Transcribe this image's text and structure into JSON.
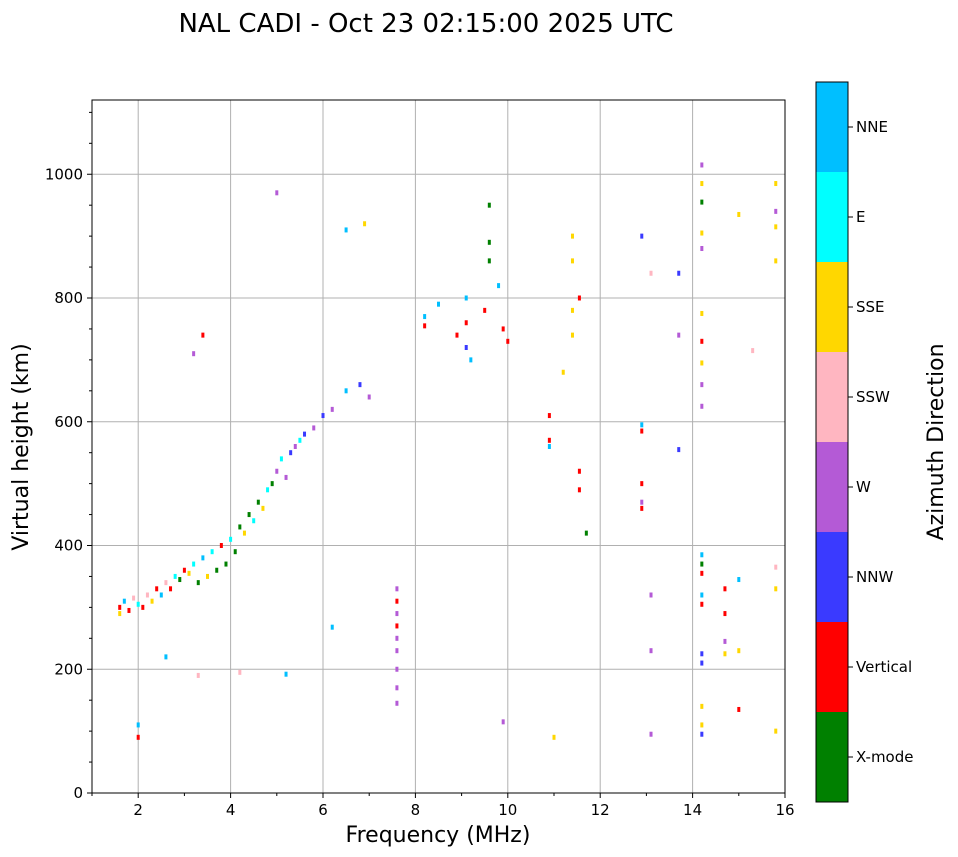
{
  "chart_data": {
    "type": "scatter",
    "title": "NAL CADI - Oct 23 02:15:00 2025 UTC",
    "xlabel": "Frequency (MHz)",
    "ylabel": "Virtual height (km)",
    "xlim": [
      1,
      16
    ],
    "ylim": [
      0,
      1120
    ],
    "x_ticks": [
      2,
      4,
      6,
      8,
      10,
      12,
      14,
      16
    ],
    "y_ticks": [
      0,
      200,
      400,
      600,
      800,
      1000
    ],
    "grid": true,
    "colorbar": {
      "label": "Azimuth Direction",
      "categories": [
        {
          "name": "X-mode",
          "color": "#008000"
        },
        {
          "name": "Vertical",
          "color": "#ff0000"
        },
        {
          "name": "NNW",
          "color": "#3a3aff"
        },
        {
          "name": "W",
          "color": "#b45ad6"
        },
        {
          "name": "SSW",
          "color": "#ffb6c1"
        },
        {
          "name": "SSE",
          "color": "#ffd700"
        },
        {
          "name": "E",
          "color": "#00ffff"
        },
        {
          "name": "NNE",
          "color": "#00bfff"
        }
      ]
    },
    "points": [
      {
        "f": 1.6,
        "h": 300,
        "dir": "Vertical"
      },
      {
        "f": 1.6,
        "h": 290,
        "dir": "SSE"
      },
      {
        "f": 1.7,
        "h": 310,
        "dir": "NNE"
      },
      {
        "f": 1.8,
        "h": 295,
        "dir": "Vertical"
      },
      {
        "f": 1.9,
        "h": 315,
        "dir": "SSW"
      },
      {
        "f": 2.0,
        "h": 305,
        "dir": "E"
      },
      {
        "f": 2.1,
        "h": 300,
        "dir": "Vertical"
      },
      {
        "f": 2.2,
        "h": 320,
        "dir": "SSW"
      },
      {
        "f": 2.3,
        "h": 310,
        "dir": "SSE"
      },
      {
        "f": 2.4,
        "h": 330,
        "dir": "Vertical"
      },
      {
        "f": 2.5,
        "h": 320,
        "dir": "NNE"
      },
      {
        "f": 2.6,
        "h": 340,
        "dir": "SSW"
      },
      {
        "f": 2.7,
        "h": 330,
        "dir": "Vertical"
      },
      {
        "f": 2.8,
        "h": 350,
        "dir": "E"
      },
      {
        "f": 2.9,
        "h": 345,
        "dir": "X-mode"
      },
      {
        "f": 3.0,
        "h": 360,
        "dir": "Vertical"
      },
      {
        "f": 3.1,
        "h": 355,
        "dir": "SSE"
      },
      {
        "f": 3.2,
        "h": 370,
        "dir": "E"
      },
      {
        "f": 3.3,
        "h": 340,
        "dir": "X-mode"
      },
      {
        "f": 3.4,
        "h": 380,
        "dir": "NNE"
      },
      {
        "f": 3.5,
        "h": 350,
        "dir": "SSE"
      },
      {
        "f": 3.6,
        "h": 390,
        "dir": "E"
      },
      {
        "f": 3.7,
        "h": 360,
        "dir": "X-mode"
      },
      {
        "f": 3.8,
        "h": 400,
        "dir": "Vertical"
      },
      {
        "f": 3.9,
        "h": 370,
        "dir": "X-mode"
      },
      {
        "f": 4.0,
        "h": 410,
        "dir": "E"
      },
      {
        "f": 4.1,
        "h": 390,
        "dir": "X-mode"
      },
      {
        "f": 4.2,
        "h": 430,
        "dir": "X-mode"
      },
      {
        "f": 4.3,
        "h": 420,
        "dir": "SSE"
      },
      {
        "f": 4.4,
        "h": 450,
        "dir": "X-mode"
      },
      {
        "f": 4.5,
        "h": 440,
        "dir": "E"
      },
      {
        "f": 4.6,
        "h": 470,
        "dir": "X-mode"
      },
      {
        "f": 4.7,
        "h": 460,
        "dir": "SSE"
      },
      {
        "f": 4.8,
        "h": 490,
        "dir": "E"
      },
      {
        "f": 4.9,
        "h": 500,
        "dir": "X-mode"
      },
      {
        "f": 5.0,
        "h": 520,
        "dir": "W"
      },
      {
        "f": 5.1,
        "h": 540,
        "dir": "E"
      },
      {
        "f": 5.2,
        "h": 510,
        "dir": "W"
      },
      {
        "f": 5.3,
        "h": 550,
        "dir": "NNW"
      },
      {
        "f": 5.4,
        "h": 560,
        "dir": "W"
      },
      {
        "f": 5.5,
        "h": 570,
        "dir": "E"
      },
      {
        "f": 5.6,
        "h": 580,
        "dir": "NNW"
      },
      {
        "f": 5.8,
        "h": 590,
        "dir": "W"
      },
      {
        "f": 6.0,
        "h": 610,
        "dir": "NNW"
      },
      {
        "f": 6.2,
        "h": 620,
        "dir": "W"
      },
      {
        "f": 6.5,
        "h": 650,
        "dir": "NNE"
      },
      {
        "f": 6.8,
        "h": 660,
        "dir": "NNW"
      },
      {
        "f": 7.0,
        "h": 640,
        "dir": "W"
      },
      {
        "f": 3.4,
        "h": 740,
        "dir": "Vertical"
      },
      {
        "f": 3.2,
        "h": 710,
        "dir": "W"
      },
      {
        "f": 5.0,
        "h": 970,
        "dir": "W"
      },
      {
        "f": 6.5,
        "h": 910,
        "dir": "NNE"
      },
      {
        "f": 6.9,
        "h": 920,
        "dir": "SSE"
      },
      {
        "f": 2.0,
        "h": 110,
        "dir": "NNE"
      },
      {
        "f": 2.0,
        "h": 90,
        "dir": "Vertical"
      },
      {
        "f": 3.3,
        "h": 190,
        "dir": "SSW"
      },
      {
        "f": 4.2,
        "h": 195,
        "dir": "SSW"
      },
      {
        "f": 5.2,
        "h": 192,
        "dir": "NNE"
      },
      {
        "f": 6.2,
        "h": 268,
        "dir": "NNE"
      },
      {
        "f": 2.6,
        "h": 220,
        "dir": "NNE"
      },
      {
        "f": 7.6,
        "h": 330,
        "dir": "W"
      },
      {
        "f": 7.6,
        "h": 310,
        "dir": "Vertical"
      },
      {
        "f": 7.6,
        "h": 290,
        "dir": "W"
      },
      {
        "f": 7.6,
        "h": 270,
        "dir": "Vertical"
      },
      {
        "f": 7.6,
        "h": 250,
        "dir": "W"
      },
      {
        "f": 7.6,
        "h": 230,
        "dir": "W"
      },
      {
        "f": 7.6,
        "h": 200,
        "dir": "W"
      },
      {
        "f": 7.6,
        "h": 170,
        "dir": "W"
      },
      {
        "f": 7.6,
        "h": 145,
        "dir": "W"
      },
      {
        "f": 8.2,
        "h": 770,
        "dir": "NNE"
      },
      {
        "f": 8.2,
        "h": 755,
        "dir": "Vertical"
      },
      {
        "f": 8.5,
        "h": 790,
        "dir": "NNE"
      },
      {
        "f": 8.9,
        "h": 740,
        "dir": "Vertical"
      },
      {
        "f": 9.1,
        "h": 760,
        "dir": "Vertical"
      },
      {
        "f": 9.1,
        "h": 720,
        "dir": "NNW"
      },
      {
        "f": 9.1,
        "h": 800,
        "dir": "NNE"
      },
      {
        "f": 9.2,
        "h": 700,
        "dir": "NNE"
      },
      {
        "f": 9.5,
        "h": 780,
        "dir": "Vertical"
      },
      {
        "f": 9.8,
        "h": 820,
        "dir": "NNE"
      },
      {
        "f": 9.9,
        "h": 750,
        "dir": "Vertical"
      },
      {
        "f": 10.0,
        "h": 730,
        "dir": "Vertical"
      },
      {
        "f": 9.6,
        "h": 950,
        "dir": "X-mode"
      },
      {
        "f": 9.6,
        "h": 890,
        "dir": "X-mode"
      },
      {
        "f": 9.6,
        "h": 860,
        "dir": "X-mode"
      },
      {
        "f": 9.9,
        "h": 115,
        "dir": "W"
      },
      {
        "f": 10.9,
        "h": 570,
        "dir": "Vertical"
      },
      {
        "f": 10.9,
        "h": 560,
        "dir": "NNE"
      },
      {
        "f": 10.9,
        "h": 610,
        "dir": "Vertical"
      },
      {
        "f": 11.0,
        "h": 90,
        "dir": "SSE"
      },
      {
        "f": 11.4,
        "h": 900,
        "dir": "SSE"
      },
      {
        "f": 11.4,
        "h": 860,
        "dir": "SSE"
      },
      {
        "f": 11.4,
        "h": 780,
        "dir": "SSE"
      },
      {
        "f": 11.4,
        "h": 740,
        "dir": "SSE"
      },
      {
        "f": 11.55,
        "h": 800,
        "dir": "Vertical"
      },
      {
        "f": 11.55,
        "h": 520,
        "dir": "Vertical"
      },
      {
        "f": 11.55,
        "h": 490,
        "dir": "Vertical"
      },
      {
        "f": 11.7,
        "h": 420,
        "dir": "X-mode"
      },
      {
        "f": 11.2,
        "h": 680,
        "dir": "SSE"
      },
      {
        "f": 12.9,
        "h": 900,
        "dir": "NNW"
      },
      {
        "f": 12.9,
        "h": 595,
        "dir": "NNE"
      },
      {
        "f": 12.9,
        "h": 585,
        "dir": "Vertical"
      },
      {
        "f": 12.9,
        "h": 500,
        "dir": "Vertical"
      },
      {
        "f": 12.9,
        "h": 470,
        "dir": "W"
      },
      {
        "f": 12.9,
        "h": 460,
        "dir": "Vertical"
      },
      {
        "f": 13.1,
        "h": 840,
        "dir": "SSW"
      },
      {
        "f": 13.1,
        "h": 320,
        "dir": "W"
      },
      {
        "f": 13.1,
        "h": 230,
        "dir": "W"
      },
      {
        "f": 13.1,
        "h": 95,
        "dir": "W"
      },
      {
        "f": 13.7,
        "h": 840,
        "dir": "NNW"
      },
      {
        "f": 13.7,
        "h": 740,
        "dir": "W"
      },
      {
        "f": 13.7,
        "h": 555,
        "dir": "NNW"
      },
      {
        "f": 14.2,
        "h": 1015,
        "dir": "W"
      },
      {
        "f": 14.2,
        "h": 985,
        "dir": "SSE"
      },
      {
        "f": 14.2,
        "h": 955,
        "dir": "X-mode"
      },
      {
        "f": 14.2,
        "h": 905,
        "dir": "SSE"
      },
      {
        "f": 14.2,
        "h": 880,
        "dir": "W"
      },
      {
        "f": 14.2,
        "h": 775,
        "dir": "SSE"
      },
      {
        "f": 14.2,
        "h": 730,
        "dir": "Vertical"
      },
      {
        "f": 14.2,
        "h": 695,
        "dir": "SSE"
      },
      {
        "f": 14.2,
        "h": 660,
        "dir": "W"
      },
      {
        "f": 14.2,
        "h": 625,
        "dir": "W"
      },
      {
        "f": 14.2,
        "h": 385,
        "dir": "NNE"
      },
      {
        "f": 14.2,
        "h": 370,
        "dir": "X-mode"
      },
      {
        "f": 14.2,
        "h": 355,
        "dir": "Vertical"
      },
      {
        "f": 14.2,
        "h": 320,
        "dir": "NNE"
      },
      {
        "f": 14.2,
        "h": 305,
        "dir": "Vertical"
      },
      {
        "f": 14.2,
        "h": 225,
        "dir": "NNW"
      },
      {
        "f": 14.2,
        "h": 210,
        "dir": "NNW"
      },
      {
        "f": 14.2,
        "h": 140,
        "dir": "SSE"
      },
      {
        "f": 14.2,
        "h": 110,
        "dir": "SSE"
      },
      {
        "f": 14.2,
        "h": 95,
        "dir": "NNW"
      },
      {
        "f": 14.7,
        "h": 330,
        "dir": "Vertical"
      },
      {
        "f": 14.7,
        "h": 290,
        "dir": "Vertical"
      },
      {
        "f": 14.7,
        "h": 245,
        "dir": "W"
      },
      {
        "f": 14.7,
        "h": 225,
        "dir": "SSE"
      },
      {
        "f": 15.0,
        "h": 345,
        "dir": "NNE"
      },
      {
        "f": 15.0,
        "h": 230,
        "dir": "SSE"
      },
      {
        "f": 15.0,
        "h": 135,
        "dir": "Vertical"
      },
      {
        "f": 15.0,
        "h": 935,
        "dir": "SSE"
      },
      {
        "f": 15.3,
        "h": 715,
        "dir": "SSW"
      },
      {
        "f": 15.8,
        "h": 985,
        "dir": "SSE"
      },
      {
        "f": 15.8,
        "h": 940,
        "dir": "W"
      },
      {
        "f": 15.8,
        "h": 915,
        "dir": "SSE"
      },
      {
        "f": 15.8,
        "h": 860,
        "dir": "SSE"
      },
      {
        "f": 15.8,
        "h": 365,
        "dir": "SSW"
      },
      {
        "f": 15.8,
        "h": 330,
        "dir": "SSE"
      },
      {
        "f": 15.8,
        "h": 100,
        "dir": "SSE"
      }
    ]
  }
}
